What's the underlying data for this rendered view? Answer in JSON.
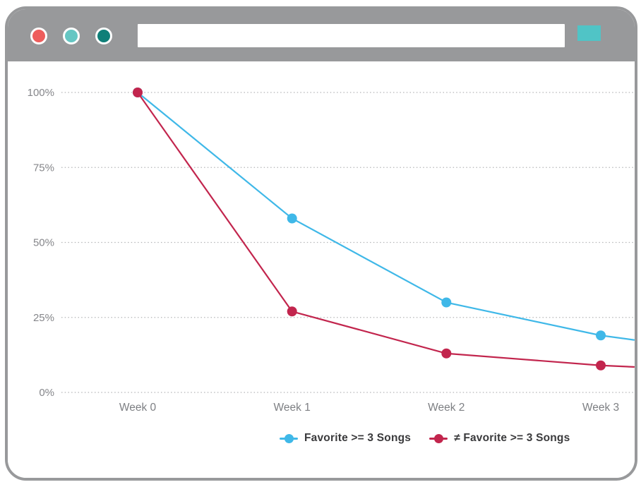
{
  "browser": {
    "chrome_color": "#98999B",
    "window_controls": [
      {
        "name": "close",
        "color": "#EE5D5C"
      },
      {
        "name": "minimize",
        "color": "#65C6C3"
      },
      {
        "name": "maximize",
        "color": "#0F7F78"
      }
    ],
    "address_bar": {
      "value": "",
      "placeholder": ""
    },
    "action_button": {
      "color": "#50C4C6"
    }
  },
  "chart_data": {
    "type": "line",
    "title": "",
    "xlabel": "",
    "ylabel": "",
    "categories": [
      "Week 0",
      "Week 1",
      "Week 2",
      "Week 3"
    ],
    "y_axis": {
      "ticks": [
        {
          "value": 100,
          "label": "100%"
        },
        {
          "value": 75,
          "label": "75%"
        },
        {
          "value": 50,
          "label": "50%"
        },
        {
          "value": 25,
          "label": "25%"
        },
        {
          "value": 0,
          "label": "0%"
        }
      ],
      "ylim": [
        0,
        100
      ]
    },
    "grid": "horizontal-dotted",
    "gridline_color": "#B4B5B7",
    "legend_position": "bottom",
    "series": [
      {
        "name": "Favorite >= 3 Songs",
        "color": "#3FB8E8",
        "values": [
          100,
          58,
          30,
          19
        ],
        "edge_value": 17.5
      },
      {
        "name": "≠ Favorite >= 3 Songs",
        "color": "#C2254D",
        "values": [
          100,
          27,
          13,
          9
        ],
        "edge_value": 8.5
      }
    ]
  }
}
